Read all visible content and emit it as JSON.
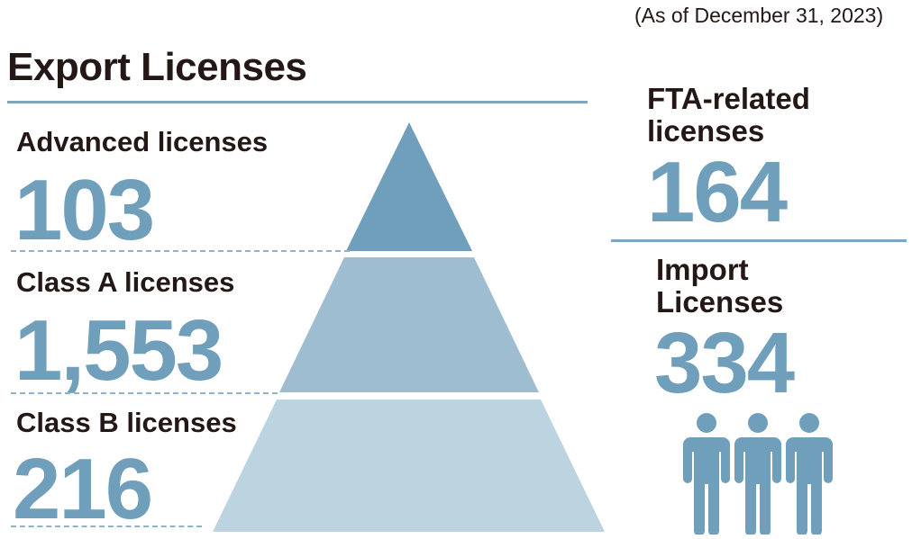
{
  "date_note": "(As of December 31, 2023)",
  "export": {
    "title": "Export Licenses",
    "tiers": [
      {
        "label": "Advanced licenses",
        "value": "103",
        "color": "#6f9fbb"
      },
      {
        "label": "Class A licenses",
        "value": "1,553",
        "color": "#9ebdd0"
      },
      {
        "label": "Class B licenses",
        "value": "216",
        "color": "#bcd3e0"
      }
    ]
  },
  "fta": {
    "label_line1": "FTA-related",
    "label_line2": "licenses",
    "value": "164"
  },
  "import": {
    "label_line1": "Import",
    "label_line2": "Licenses",
    "value": "334",
    "icon": "people-group-icon"
  },
  "colors": {
    "accent": "#6f9fbb",
    "rule": "#7ba7c0",
    "text": "#231815"
  }
}
